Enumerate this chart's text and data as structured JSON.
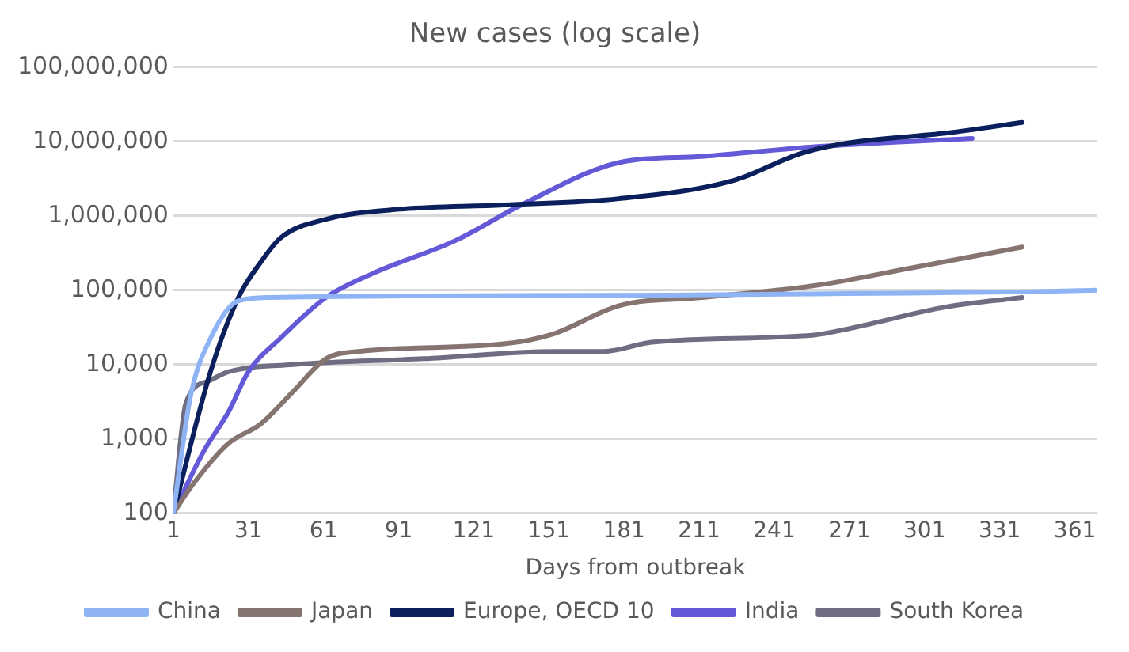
{
  "chart_data": {
    "type": "line",
    "title": "New cases (log scale)",
    "xlabel": "Days from outbreak",
    "log": "y",
    "grid": "y",
    "legend": "bottom",
    "marker": "none",
    "line_style": "solid",
    "xlim": [
      1,
      370
    ],
    "xticks": [
      1,
      31,
      61,
      91,
      121,
      151,
      181,
      211,
      241,
      271,
      301,
      331,
      361
    ],
    "ylim": [
      100,
      100000000
    ],
    "yticks": [
      {
        "value": 100,
        "label": "100"
      },
      {
        "value": 1000,
        "label": "1,000"
      },
      {
        "value": 10000,
        "label": "10,000"
      },
      {
        "value": 100000,
        "label": "100,000"
      },
      {
        "value": 1000000,
        "label": "1,000,000"
      },
      {
        "value": 10000000,
        "label": "10,000,000"
      },
      {
        "value": 100000000,
        "label": "100,000,000"
      }
    ],
    "series": [
      {
        "name": "China",
        "color": "#8fb4f5",
        "x": [
          1,
          8,
          16,
          27,
          40,
          100,
          200,
          270,
          340,
          370
        ],
        "values": [
          100,
          3900,
          23000,
          72000,
          80000,
          84000,
          86000,
          90000,
          95000,
          100000
        ]
      },
      {
        "name": "Japan",
        "color": "#857470",
        "x": [
          1,
          9,
          23,
          36,
          49,
          62,
          75,
          133,
          153,
          179,
          212,
          257,
          296,
          340
        ],
        "values": [
          100,
          250,
          870,
          1600,
          4400,
          12000,
          15000,
          19000,
          26000,
          62000,
          80000,
          115000,
          200000,
          380000
        ]
      },
      {
        "name": "Europe, OECD 10",
        "color": "#0a1f5c",
        "x": [
          1,
          16,
          27,
          36,
          44,
          62,
          88,
          133,
          179,
          225,
          251,
          270,
          310,
          340
        ],
        "values": [
          100,
          8300,
          80000,
          240000,
          510000,
          900000,
          1200000,
          1400000,
          1700000,
          3000000,
          6800000,
          9500000,
          13000000,
          18000000
        ]
      },
      {
        "name": "India",
        "color": "#6459d6",
        "x": [
          1,
          13,
          23,
          31,
          44,
          62,
          81,
          114,
          140,
          179,
          212,
          257,
          320
        ],
        "values": [
          100,
          670,
          2300,
          8000,
          23000,
          80000,
          170000,
          470000,
          1400000,
          5200000,
          6300000,
          8500000,
          11000000
        ]
      },
      {
        "name": "South Korea",
        "color": "#6e6d82",
        "x": [
          1,
          6,
          15,
          23,
          49,
          101,
          153,
          173,
          192,
          257,
          270,
          310,
          340
        ],
        "values": [
          100,
          3000,
          6000,
          8000,
          10000,
          12000,
          15000,
          15000,
          20000,
          25000,
          30000,
          60000,
          80000
        ]
      }
    ]
  }
}
